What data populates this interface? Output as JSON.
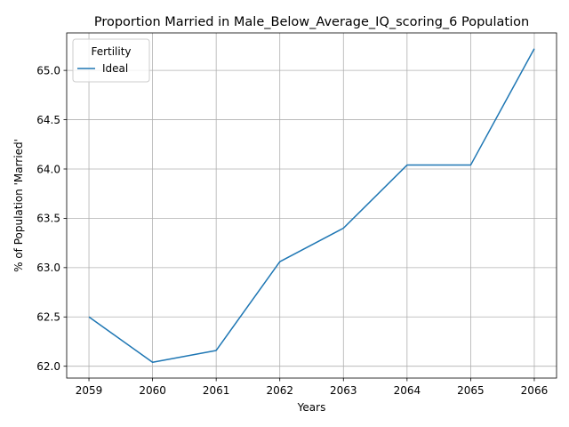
{
  "chart_data": {
    "type": "line",
    "title": "Proportion Married in Male_Below_Average_IQ_scoring_6 Population",
    "xlabel": "Years",
    "ylabel": "% of Population 'Married'",
    "x": [
      2059,
      2060,
      2061,
      2062,
      2063,
      2064,
      2065,
      2066
    ],
    "xticks": [
      "2059",
      "2060",
      "2061",
      "2062",
      "2063",
      "2064",
      "2065",
      "2066"
    ],
    "yticks": [
      "62.0",
      "62.5",
      "63.0",
      "63.5",
      "64.0",
      "64.5",
      "65.0"
    ],
    "xlim": [
      2058.65,
      2066.35
    ],
    "ylim": [
      61.88,
      65.38
    ],
    "grid": true,
    "legend": {
      "title": "Fertility",
      "position": "top-left"
    },
    "series": [
      {
        "name": "Ideal",
        "color": "#1f77b4",
        "values": [
          62.5,
          62.04,
          62.16,
          63.06,
          63.4,
          64.04,
          64.04,
          65.22
        ]
      }
    ]
  }
}
